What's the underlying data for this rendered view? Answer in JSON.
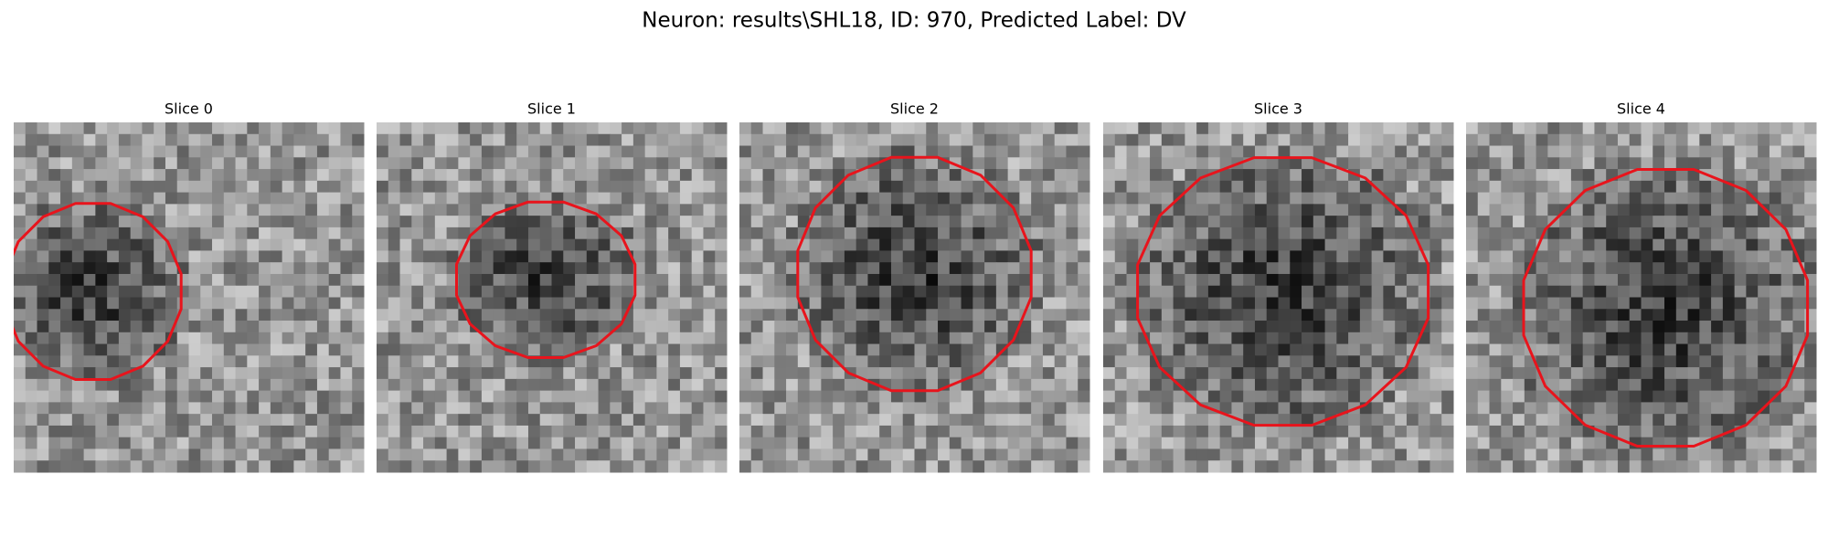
{
  "figure": {
    "title": "Neuron: results\\SHL18, ID: 970, Predicted Label: DV",
    "panels": [
      {
        "title": "Slice 0"
      },
      {
        "title": "Slice 1"
      },
      {
        "title": "Slice 2"
      },
      {
        "title": "Slice 3"
      },
      {
        "title": "Slice 4"
      }
    ]
  }
}
